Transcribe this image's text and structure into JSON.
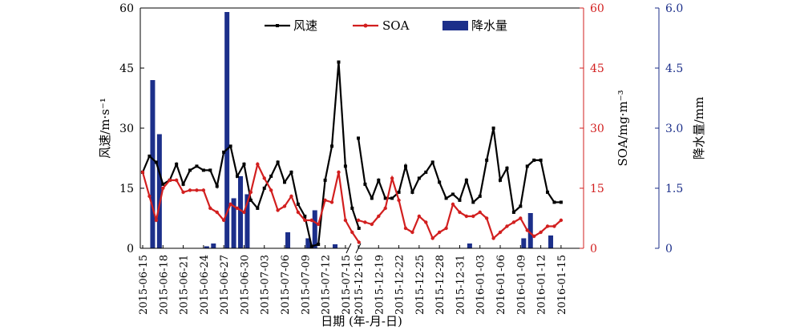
{
  "chart_data": {
    "type": "line",
    "xlabel": "日期 (年-月-日)",
    "y1label": "风速/m·s⁻¹",
    "y2label": "SOA/mg·m⁻³",
    "y3label": "降水量/mm",
    "y1lim": [
      0,
      60
    ],
    "y2lim": [
      0,
      60
    ],
    "y3lim": [
      0,
      6.0
    ],
    "y1ticks": [
      "0",
      "15",
      "30",
      "45",
      "60"
    ],
    "y2ticks": [
      "0",
      "15",
      "30",
      "45",
      "60"
    ],
    "y3ticks": [
      "0",
      "1.5",
      "3.0",
      "4.5",
      "6.0"
    ],
    "legend_position": "top-center",
    "colors": {
      "wind": "#000000",
      "soa": "#d21f1f",
      "rain": "#1c2f8a",
      "axis_right": "#d21f1f",
      "axis_rain": "#1c2f8a"
    },
    "x_ticks": [
      "2015-06-15",
      "2015-06-18",
      "2015-06-21",
      "2015-06-24",
      "2015-06-27",
      "2015-06-30",
      "2015-07-03",
      "2015-07-06",
      "2015-07-09",
      "2015-07-12",
      "2015-07-15",
      "2015-12-16",
      "2015-12-19",
      "2015-12-22",
      "2015-12-25",
      "2015-12-28",
      "2015-12-31",
      "2016-01-03",
      "2016-01-06",
      "2016-01-09",
      "2016-01-12",
      "2016-01-15"
    ],
    "segment1_dates": [
      "2015-06-15",
      "2015-06-16",
      "2015-06-17",
      "2015-06-18",
      "2015-06-19",
      "2015-06-20",
      "2015-06-21",
      "2015-06-22",
      "2015-06-23",
      "2015-06-24",
      "2015-06-25",
      "2015-06-26",
      "2015-06-27",
      "2015-06-28",
      "2015-06-29",
      "2015-06-30",
      "2015-07-01",
      "2015-07-02",
      "2015-07-03",
      "2015-07-04",
      "2015-07-05",
      "2015-07-06",
      "2015-07-07",
      "2015-07-08",
      "2015-07-09",
      "2015-07-10",
      "2015-07-11",
      "2015-07-12",
      "2015-07-13",
      "2015-07-14",
      "2015-07-15",
      "2015-07-16",
      "2015-07-17"
    ],
    "segment2_dates": [
      "2015-12-16",
      "2015-12-17",
      "2015-12-18",
      "2015-12-19",
      "2015-12-20",
      "2015-12-21",
      "2015-12-22",
      "2015-12-23",
      "2015-12-24",
      "2015-12-25",
      "2015-12-26",
      "2015-12-27",
      "2015-12-28",
      "2015-12-29",
      "2015-12-30",
      "2015-12-31",
      "2016-01-01",
      "2016-01-02",
      "2016-01-03",
      "2016-01-04",
      "2016-01-05",
      "2016-01-06",
      "2016-01-07",
      "2016-01-08",
      "2016-01-09",
      "2016-01-10",
      "2016-01-11",
      "2016-01-12",
      "2016-01-13",
      "2016-01-14",
      "2016-01-15"
    ],
    "series": [
      {
        "name": "风速",
        "axis": "y1",
        "segment1": [
          19,
          23,
          21.5,
          16,
          17,
          21,
          16,
          19.5,
          20.5,
          19.5,
          19.5,
          15.5,
          24,
          25.5,
          18,
          21,
          12,
          10,
          15,
          18,
          21.5,
          16.5,
          19,
          11,
          8,
          0.5,
          1,
          17,
          25.5,
          46.5,
          20.5,
          10,
          5
        ],
        "segment2": [
          27.5,
          16,
          12.5,
          17,
          12.5,
          12.5,
          14,
          20.5,
          14,
          17.5,
          19,
          21.5,
          16.5,
          12.5,
          13.5,
          12,
          17,
          11.5,
          13,
          22,
          30,
          17,
          20,
          9,
          10.5,
          20.5,
          22,
          22,
          14,
          11.5,
          11.5
        ]
      },
      {
        "name": "SOA",
        "axis": "y2",
        "segment1": [
          19,
          13,
          7,
          15,
          17,
          17,
          14,
          14.5,
          14.5,
          14.5,
          10,
          9,
          7,
          11,
          10,
          9,
          14,
          21,
          17.5,
          14.5,
          9.5,
          10.5,
          13,
          9,
          7,
          7,
          6,
          12,
          11.5,
          19,
          7,
          4,
          1.5
        ],
        "segment2": [
          7,
          6.5,
          6,
          8,
          10,
          17.5,
          12,
          5,
          4,
          8,
          6.5,
          2.5,
          4,
          5,
          11,
          9,
          8,
          8,
          9,
          7.5,
          2.5,
          4,
          5.5,
          6.5,
          7.5,
          4.5,
          3,
          4,
          5.5,
          5.5,
          7
        ]
      },
      {
        "name": "降水量",
        "axis": "y3",
        "type": "bar",
        "segment1": [
          0,
          4.2,
          2.85,
          0,
          0,
          0,
          0,
          0,
          0,
          0.05,
          0.12,
          0,
          5.9,
          1.25,
          1.8,
          1.35,
          0,
          0,
          0,
          0,
          0,
          0.4,
          0,
          0,
          0.25,
          0.95,
          0,
          0,
          0.1,
          0,
          0,
          0,
          0
        ],
        "segment2": [
          0,
          0,
          0,
          0,
          0,
          0,
          0,
          0,
          0,
          0,
          0,
          0,
          0,
          0,
          0,
          0,
          0.12,
          0,
          0,
          0,
          0,
          0,
          0,
          0,
          0.25,
          0.88,
          0,
          0,
          0.32,
          0,
          0
        ]
      }
    ]
  }
}
